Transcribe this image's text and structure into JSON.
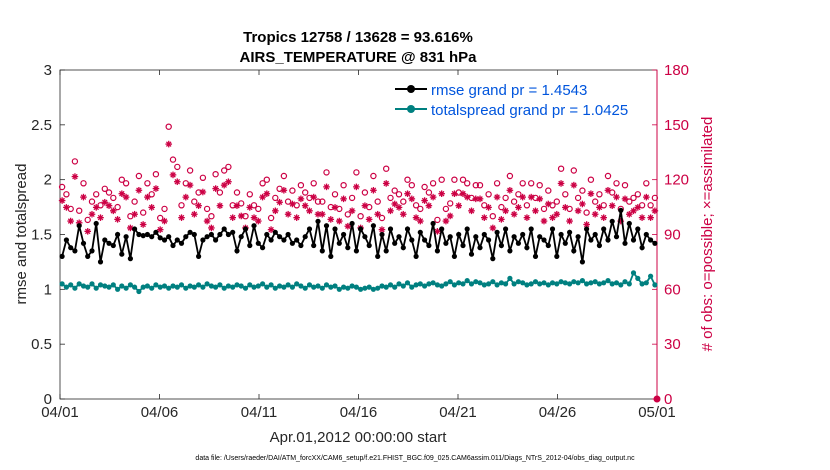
{
  "chart_data": {
    "type": "line",
    "title_line1": "Tropics 12758 / 13628 = 93.616%",
    "title_line2": "AIRS_TEMPERATURE @ 831 hPa",
    "xlabel": "Apr.01,2012 00:00:00 start",
    "ylabel_left": "rmse and totalspread",
    "ylabel_right": "# of obs: o=possible; ×=assimilated",
    "x_ticks": [
      "04/01",
      "04/06",
      "04/11",
      "04/16",
      "04/21",
      "04/26",
      "05/01"
    ],
    "x_range_days": [
      0,
      30
    ],
    "ylim_left": [
      0,
      3
    ],
    "y_ticks_left": [
      "0",
      "0.5",
      "1",
      "1.5",
      "2",
      "2.5",
      "3"
    ],
    "ylim_right": [
      0,
      180
    ],
    "y_ticks_right": [
      "0",
      "30",
      "60",
      "90",
      "120",
      "150",
      "180"
    ],
    "footer": "data file: /Users/raeder/DAI/ATM_forcXX/CAM6_setup/f.e21.FHIST_BGC.f09_025.CAM6assim.011/Diags_NTrS_2012-04/obs_diag_output.nc",
    "colors": {
      "rmse": "#000000",
      "spread": "#008080",
      "obs": "#cc0044",
      "legend_text": "#0055dd"
    },
    "series": [
      {
        "name": "rmse grand pr = 1.4543",
        "values": [
          1.3,
          1.45,
          1.38,
          1.35,
          1.58,
          1.42,
          1.3,
          1.35,
          1.6,
          1.25,
          1.45,
          1.42,
          1.4,
          1.5,
          1.32,
          1.48,
          1.28,
          1.55,
          1.5,
          1.49,
          1.5,
          1.48,
          1.52,
          1.47,
          1.45,
          1.48,
          1.4,
          1.45,
          1.42,
          1.48,
          1.52,
          1.5,
          1.3,
          1.45,
          1.48,
          1.5,
          1.45,
          1.5,
          1.55,
          1.5,
          1.52,
          1.35,
          1.48,
          1.55,
          1.4,
          1.58,
          1.42,
          1.38,
          1.5,
          1.45,
          1.52,
          1.48,
          1.45,
          1.5,
          1.42,
          1.45,
          1.4,
          1.48,
          1.55,
          1.4,
          1.62,
          1.35,
          1.58,
          1.3,
          1.55,
          1.42,
          1.5,
          1.38,
          1.6,
          1.35,
          1.55,
          1.48,
          1.4,
          1.58,
          1.3,
          1.5,
          1.35,
          1.55,
          1.42,
          1.48,
          1.38,
          1.55,
          1.45,
          1.3,
          1.52,
          1.45,
          1.4,
          1.6,
          1.35,
          1.55,
          1.42,
          1.48,
          1.3,
          1.5,
          1.4,
          1.55,
          1.32,
          1.48,
          1.38,
          1.5,
          1.45,
          1.28,
          1.52,
          1.4,
          1.55,
          1.35,
          1.48,
          1.42,
          1.5,
          1.38,
          1.55,
          1.3,
          1.48,
          1.45,
          1.4,
          1.55,
          1.3,
          1.5,
          1.42,
          1.52,
          1.35,
          1.48,
          1.25,
          1.55,
          1.45,
          1.5,
          1.4,
          1.55,
          1.45,
          1.62,
          1.48,
          1.72,
          1.42,
          1.6,
          1.45,
          1.55,
          1.38,
          1.5,
          1.45,
          1.42
        ]
      },
      {
        "name": "totalspread grand pr = 1.0425",
        "values": [
          1.05,
          1.02,
          1.04,
          1.01,
          1.05,
          1.03,
          1.02,
          1.05,
          1.01,
          1.04,
          1.03,
          1.02,
          1.04,
          1.0,
          1.03,
          1.01,
          1.04,
          1.02,
          0.98,
          1.02,
          1.03,
          1.01,
          1.04,
          1.02,
          1.03,
          1.01,
          1.03,
          1.02,
          1.04,
          1.01,
          1.03,
          1.02,
          1.04,
          1.02,
          1.05,
          1.03,
          1.02,
          1.04,
          1.01,
          1.03,
          1.02,
          1.04,
          1.03,
          1.01,
          1.04,
          1.02,
          1.03,
          1.05,
          1.02,
          1.04,
          1.01,
          1.03,
          1.02,
          1.04,
          1.02,
          1.05,
          1.03,
          1.01,
          1.04,
          1.02,
          1.03,
          1.01,
          1.04,
          1.02,
          1.03,
          1.0,
          1.02,
          1.01,
          1.03,
          1.02,
          1.0,
          1.01,
          1.02,
          1.0,
          1.01,
          1.03,
          1.02,
          1.04,
          1.02,
          1.05,
          1.03,
          1.06,
          1.02,
          1.04,
          1.05,
          1.03,
          1.05,
          1.06,
          1.04,
          1.03,
          1.05,
          1.07,
          1.04,
          1.06,
          1.05,
          1.08,
          1.05,
          1.07,
          1.06,
          1.04,
          1.05,
          1.07,
          1.04,
          1.06,
          1.05,
          1.1,
          1.05,
          1.07,
          1.06,
          1.04,
          1.05,
          1.07,
          1.05,
          1.06,
          1.04,
          1.06,
          1.05,
          1.07,
          1.06,
          1.05,
          1.07,
          1.06,
          1.08,
          1.05,
          1.06,
          1.07,
          1.05,
          1.06,
          1.08,
          1.05,
          1.06,
          1.04,
          1.07,
          1.05,
          1.15,
          1.1,
          1.05,
          1.06,
          1.12,
          1.04
        ]
      }
    ],
    "obs_possible": [
      116,
      112,
      104,
      130,
      103,
      118,
      98,
      108,
      112,
      106,
      115,
      113,
      110,
      105,
      120,
      118,
      100,
      108,
      122,
      102,
      118,
      112,
      123,
      99,
      104,
      149,
      131,
      127,
      106,
      118,
      125,
      108,
      113,
      121,
      104,
      100,
      123,
      113,
      125,
      127,
      106,
      113,
      107,
      100,
      112,
      106,
      104,
      118,
      120,
      99,
      110,
      115,
      122,
      108,
      114,
      106,
      117,
      113,
      110,
      118,
      108,
      108,
      124,
      105,
      112,
      104,
      117,
      101,
      110,
      124,
      100,
      113,
      105,
      122,
      108,
      99,
      126,
      110,
      114,
      112,
      108,
      120,
      117,
      106,
      104,
      116,
      113,
      118,
      98,
      120,
      104,
      107,
      120,
      113,
      120,
      118,
      110,
      117,
      117,
      106,
      112,
      100,
      118,
      105,
      110,
      122,
      108,
      112,
      118,
      106,
      118,
      110,
      117,
      104,
      114,
      106,
      108,
      126,
      112,
      104,
      125,
      110,
      114,
      102,
      120,
      108,
      112,
      106,
      122,
      113,
      118,
      104,
      117,
      108,
      110,
      112,
      106,
      118,
      106,
      110
    ]
  }
}
